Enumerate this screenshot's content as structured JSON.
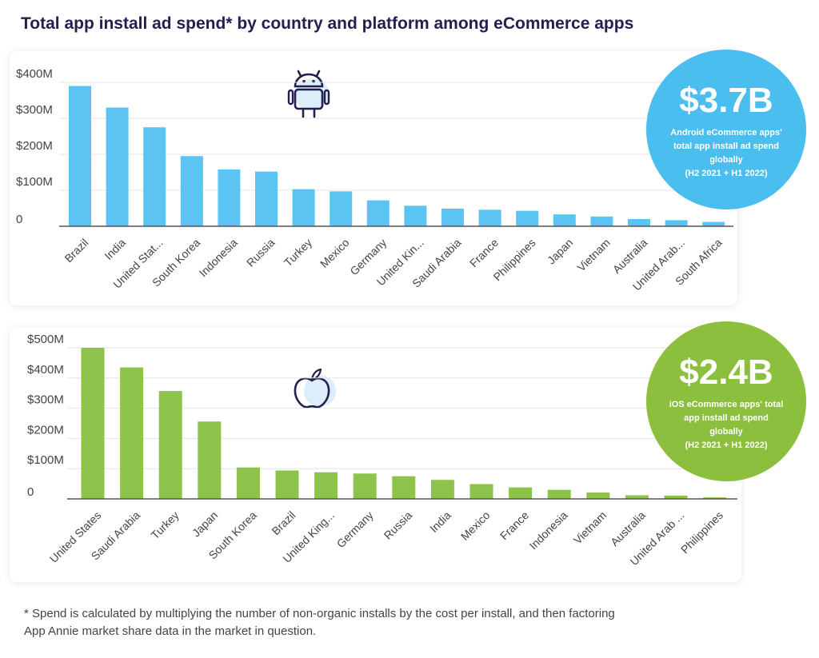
{
  "title": "Total app install ad spend* by country and platform among eCommerce apps",
  "colors": {
    "android": "#5bc4f2",
    "ios": "#8dc34a",
    "android_badge": "#4bbef0",
    "ios_badge": "#8dbf3f"
  },
  "chart_data": [
    {
      "type": "bar",
      "platform_icon": "android-icon",
      "categories": [
        "Brazil",
        "India",
        "United Stat...",
        "South Korea",
        "Indonesia",
        "Russia",
        "Turkey",
        "Mexico",
        "Germany",
        "United Kin...",
        "Saudi Arabia",
        "France",
        "Philippines",
        "Japan",
        "Vietnam",
        "Australia",
        "United Arab...",
        "South Africa"
      ],
      "values": [
        390,
        330,
        275,
        195,
        158,
        152,
        103,
        97,
        72,
        57,
        49,
        46,
        43,
        33,
        27,
        20,
        17,
        12
      ],
      "unit": "$M",
      "ylim": [
        0,
        400
      ],
      "yticks": [
        0,
        100,
        200,
        300,
        400
      ],
      "ytick_labels": [
        "0",
        "$100M",
        "$200M",
        "$300M",
        "$400M"
      ],
      "grid": true,
      "xlabel": "",
      "ylabel": ""
    },
    {
      "type": "bar",
      "platform_icon": "apple-icon",
      "categories": [
        "United States",
        "Saudi Arabia",
        "Turkey",
        "Japan",
        "South Korea",
        "Brazil",
        "United King...",
        "Germany",
        "Russia",
        "India",
        "Mexico",
        "France",
        "Indonesia",
        "Vietnam",
        "Australia",
        "United Arab ...",
        "Philippines"
      ],
      "values": [
        500,
        435,
        357,
        256,
        104,
        94,
        88,
        84,
        75,
        63,
        49,
        38,
        30,
        21,
        12,
        11,
        5
      ],
      "unit": "$M",
      "ylim": [
        0,
        500
      ],
      "yticks": [
        0,
        100,
        200,
        300,
        400,
        500
      ],
      "ytick_labels": [
        "0",
        "$100M",
        "$200M",
        "$300M",
        "$400M",
        "$500M"
      ],
      "grid": true,
      "xlabel": "",
      "ylabel": ""
    }
  ],
  "android_badge": {
    "value": "$3.7B",
    "lines": [
      "Android eCommerce apps'",
      "total app install ad spend",
      "globally",
      "(H2 2021 + H1 2022)"
    ]
  },
  "ios_badge": {
    "value": "$2.4B",
    "lines": [
      "iOS eCommerce apps' total",
      "app install ad spend",
      "globally",
      "(H2 2021 + H1 2022)"
    ]
  },
  "footnote": [
    "* Spend is calculated by multiplying the number of non-organic installs by the cost per install, and then factoring",
    "App Annie market share data in the market in question."
  ]
}
